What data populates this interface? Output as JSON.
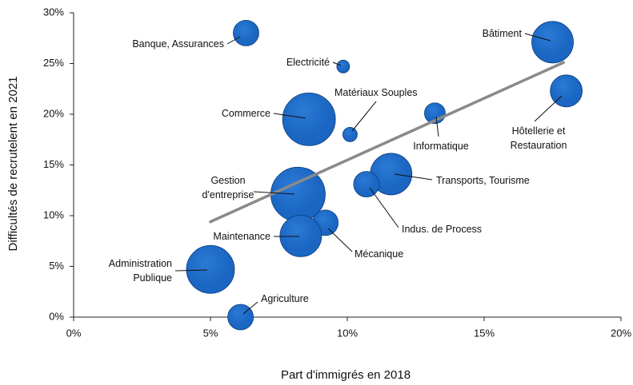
{
  "chart_data": {
    "type": "bubble",
    "xlabel": "Part d'immigrés en 2018",
    "ylabel": "Difficultés de recrutelent en 2021",
    "labels": [
      "Banque, Assurances",
      "Electricité",
      "Bâtiment",
      "Hôtellerie et Restauration",
      "Matériaux Souples",
      "Commerce",
      "Informatique",
      "Transports, Tourisme",
      "Indus. de Process",
      "Gestion d'entreprise",
      "Mécanique",
      "Maintenance",
      "Administration Publique",
      "Agriculture"
    ],
    "x": [
      6.3,
      9.85,
      17.5,
      18.0,
      10.1,
      8.6,
      13.2,
      11.6,
      10.7,
      8.2,
      9.2,
      8.3,
      5.0,
      6.1
    ],
    "values": [
      28.0,
      24.7,
      27.1,
      22.3,
      18.0,
      19.5,
      20.1,
      14.1,
      13.1,
      12.1,
      9.3,
      8.0,
      4.7,
      0.0
    ],
    "sizes": [
      16,
      8,
      26,
      20,
      9,
      33,
      13,
      26,
      16,
      34,
      16,
      26,
      30,
      16
    ],
    "color": "#1a66c2",
    "trendline": {
      "x": [
        5.0,
        17.9
      ],
      "y": [
        9.4,
        25.1
      ],
      "color": "#8a8a8a"
    },
    "xlim": [
      0,
      20
    ],
    "xticks": [
      {
        "value": 0,
        "label": "0%"
      },
      {
        "value": 5,
        "label": "5%"
      },
      {
        "value": 10,
        "label": "10%"
      },
      {
        "value": 15,
        "label": "15%"
      },
      {
        "value": 20,
        "label": "20%"
      }
    ],
    "ylim": [
      0,
      30
    ],
    "yticks": [
      {
        "value": 0,
        "label": "0%"
      },
      {
        "value": 5,
        "label": "5%"
      },
      {
        "value": 10,
        "label": "10%"
      },
      {
        "value": 15,
        "label": "15%"
      },
      {
        "value": 20,
        "label": "20%"
      },
      {
        "value": 25,
        "label": "25%"
      },
      {
        "value": 30,
        "label": "30%"
      }
    ]
  }
}
